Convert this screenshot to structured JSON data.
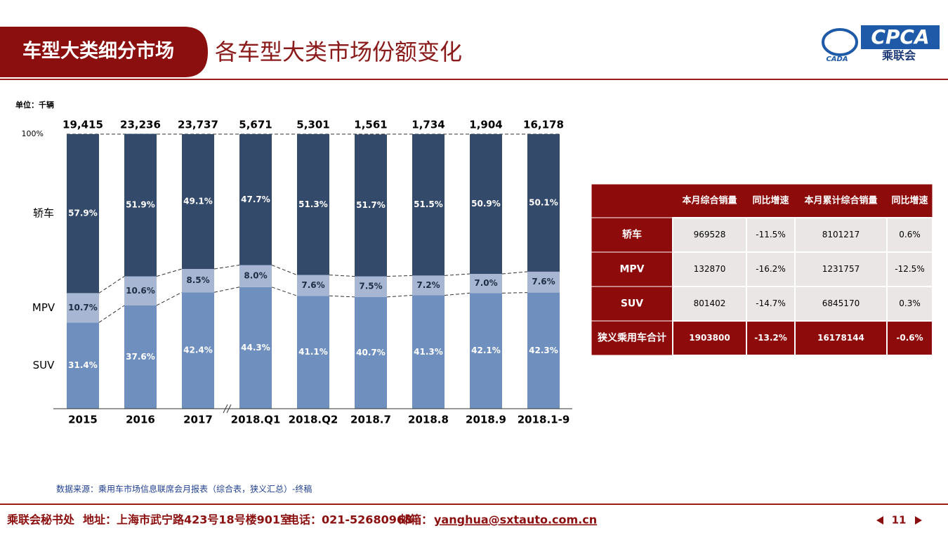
{
  "header": {
    "section": "车型大类细分市场",
    "title": "各车型大类市场份额变化",
    "logo_text": "CPCA",
    "logo_sub": "乘联会",
    "logo_small": "CADA"
  },
  "chart_data": {
    "type": "bar",
    "stacked": true,
    "unit": "单位：千辆",
    "categories": [
      "2015",
      "2016",
      "2017",
      "2018.Q1",
      "2018.Q2",
      "2018.7",
      "2018.8",
      "2018.9",
      "2018.1-9"
    ],
    "totals": {
      "values": [
        19415,
        23236,
        23737,
        5671,
        5301,
        1561,
        1734,
        1904,
        16178
      ],
      "value_labels": [
        "19,415",
        "23,236",
        "23,737",
        "5,671",
        "5,301",
        "1,561",
        "1,734",
        "1,904",
        "16,178"
      ]
    },
    "series": [
      {
        "name": "SUV",
        "color": "#6f8fbe",
        "label_color": "#ffffff",
        "values": [
          31.4,
          37.6,
          42.4,
          44.3,
          41.1,
          40.7,
          41.3,
          42.1,
          42.3
        ],
        "value_labels": [
          "31.4%",
          "37.6%",
          "42.4%",
          "44.3%",
          "41.1%",
          "40.7%",
          "41.3%",
          "42.1%",
          "42.3%"
        ]
      },
      {
        "name": "MPV",
        "color": "#a7b6d2",
        "label_color": "#1f2d44",
        "values": [
          10.7,
          10.6,
          8.5,
          8.0,
          7.6,
          7.5,
          7.2,
          7.0,
          7.6
        ],
        "value_labels": [
          "10.7%",
          "10.6%",
          "8.5%",
          "8.0%",
          "7.6%",
          "7.5%",
          "7.2%",
          "7.0%",
          "7.6%"
        ]
      },
      {
        "name": "轿车",
        "color": "#344a6b",
        "label_color": "#ffffff",
        "values": [
          57.9,
          51.9,
          49.1,
          47.7,
          51.3,
          51.7,
          51.5,
          50.9,
          50.1
        ],
        "value_labels": [
          "57.9%",
          "51.9%",
          "49.1%",
          "47.7%",
          "51.3%",
          "51.7%",
          "51.5%",
          "50.9%",
          "50.1%"
        ]
      }
    ],
    "ylim": [
      0,
      100
    ],
    "yticks": [
      {
        "value": 100,
        "label": "100%"
      }
    ]
  },
  "table": {
    "columns": [
      "本月综合销量",
      "同比增速",
      "本月累计综合销量",
      "同比增速"
    ],
    "rows": [
      {
        "label": "轿车",
        "cells": [
          "969528",
          "-11.5%",
          "8101217",
          "0.6%"
        ]
      },
      {
        "label": "MPV",
        "cells": [
          "132870",
          "-16.2%",
          "1231757",
          "-12.5%"
        ]
      },
      {
        "label": "SUV",
        "cells": [
          "801402",
          "-14.7%",
          "6845170",
          "0.3%"
        ]
      },
      {
        "label": "狭义乘用车合计",
        "cells": [
          "1903800",
          "-13.2%",
          "16178144",
          "-0.6%"
        ]
      }
    ]
  },
  "source": "数据来源：乘用车市场信息联席会月报表（综合表，狭义汇总）-终稿",
  "footer": {
    "org": "乘联会秘书处",
    "address": "地址：上海市武宁路423号18号楼901室",
    "phone": "电话：021-52680968",
    "email_label": "邮箱：",
    "email": "yanghua@sxtauto.com.cn",
    "page": 11
  }
}
